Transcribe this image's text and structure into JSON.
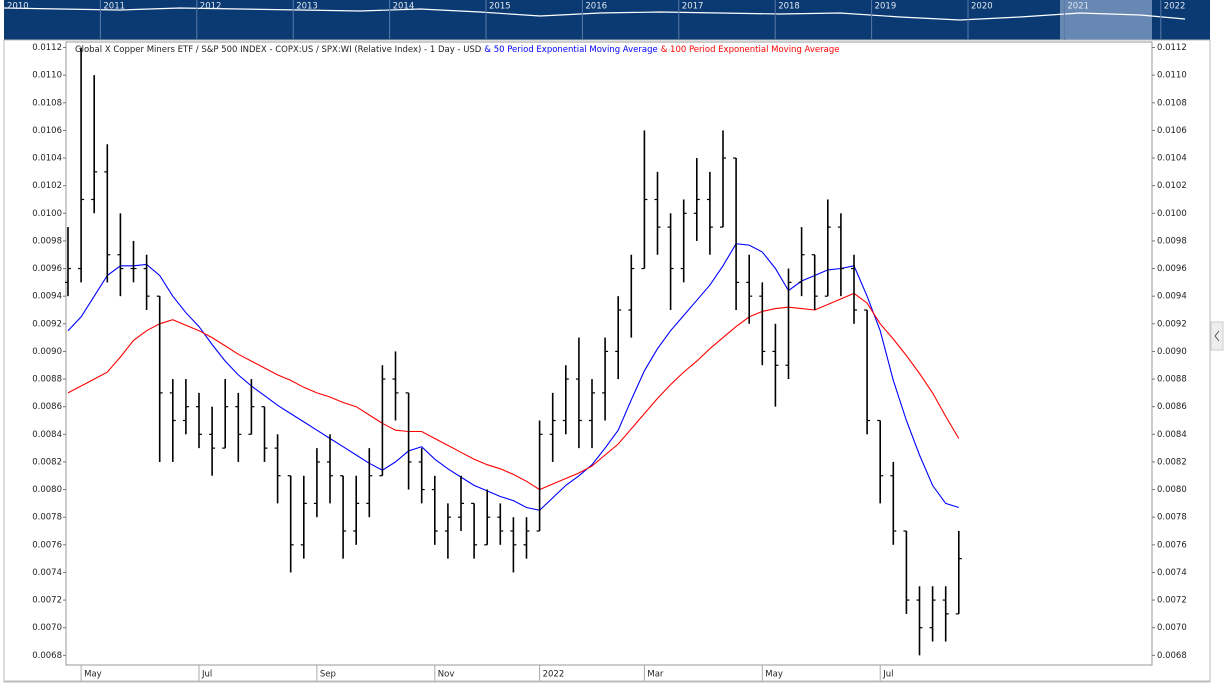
{
  "chart_data": {
    "type": "ohlc",
    "title": "Global X Copper Miners ETF / S&P 500 INDEX - COPX:US / SPX:WI (Relative Index) - 1 Day - USD",
    "categories": [
      null,
      "May",
      null,
      null,
      null,
      null,
      null,
      null,
      null,
      null,
      "Jul",
      null,
      null,
      null,
      null,
      null,
      null,
      null,
      null,
      "Sep",
      null,
      null,
      null,
      null,
      null,
      null,
      null,
      null,
      "Nov",
      null,
      null,
      null,
      null,
      null,
      null,
      null,
      "2022",
      null,
      null,
      null,
      null,
      null,
      null,
      null,
      "Mar",
      null,
      null,
      null,
      null,
      null,
      null,
      null,
      null,
      "May",
      null,
      null,
      null,
      null,
      null,
      null,
      null,
      null,
      "Jul",
      null,
      null,
      null,
      null,
      null,
      null
    ],
    "open": [
      0.0095,
      0.0096,
      0.0101,
      0.0103,
      0.0097,
      0.0096,
      0.0096,
      0.0094,
      0.0087,
      0.0085,
      0.0086,
      0.0084,
      0.0083,
      0.0086,
      0.0084,
      0.0086,
      0.0083,
      0.0081,
      0.0076,
      0.0079,
      0.0082,
      0.0081,
      0.0077,
      0.0079,
      0.0081,
      0.0088,
      0.0087,
      0.0082,
      0.008,
      0.0077,
      0.0078,
      0.0079,
      0.0076,
      0.0078,
      0.0077,
      0.0076,
      0.0077,
      0.0084,
      0.0085,
      0.0088,
      0.0085,
      0.0087,
      0.009,
      0.0093,
      0.0096,
      0.0101,
      0.0099,
      0.0096,
      0.01,
      0.0101,
      0.0099,
      0.0104,
      0.0095,
      0.0094,
      0.009,
      0.0089,
      0.0095,
      0.0097,
      0.0094,
      0.0099,
      0.0096,
      0.0093,
      0.0085,
      0.0081,
      0.0077,
      0.0072,
      0.007,
      0.0072,
      0.0071
    ],
    "high": [
      0.0099,
      0.0112,
      0.011,
      0.0105,
      0.01,
      0.0098,
      0.0097,
      0.0094,
      0.0088,
      0.0088,
      0.0087,
      0.0086,
      0.0088,
      0.0087,
      0.0088,
      0.0086,
      0.0084,
      0.0081,
      0.0081,
      0.0083,
      0.0084,
      0.0081,
      0.0081,
      0.0083,
      0.0089,
      0.009,
      0.0087,
      0.0083,
      0.0081,
      0.0079,
      0.0081,
      0.0079,
      0.008,
      0.0079,
      0.0078,
      0.0078,
      0.0085,
      0.0087,
      0.0089,
      0.0091,
      0.0088,
      0.0091,
      0.0094,
      0.0097,
      0.0106,
      0.0103,
      0.01,
      0.0101,
      0.0104,
      0.0103,
      0.0106,
      0.0104,
      0.0097,
      0.0095,
      0.0092,
      0.0096,
      0.0099,
      0.0097,
      0.0101,
      0.01,
      0.0097,
      0.0093,
      0.0085,
      0.0082,
      0.0077,
      0.0073,
      0.0073,
      0.0073,
      0.0077
    ],
    "low": [
      0.0094,
      0.0095,
      0.01,
      0.0095,
      0.0094,
      0.0095,
      0.0093,
      0.0082,
      0.0082,
      0.0084,
      0.0083,
      0.0081,
      0.0083,
      0.0082,
      0.0084,
      0.0082,
      0.0079,
      0.0074,
      0.0075,
      0.0078,
      0.0079,
      0.0075,
      0.0076,
      0.0078,
      0.0081,
      0.0085,
      0.008,
      0.0079,
      0.0076,
      0.0075,
      0.0077,
      0.0075,
      0.0076,
      0.0076,
      0.0074,
      0.0075,
      0.0077,
      0.0082,
      0.0084,
      0.0083,
      0.0083,
      0.0085,
      0.0088,
      0.0091,
      0.0096,
      0.0097,
      0.0093,
      0.0095,
      0.0098,
      0.0097,
      0.0099,
      0.0093,
      0.0092,
      0.0089,
      0.0086,
      0.0088,
      0.0094,
      0.0093,
      0.0094,
      0.0094,
      0.0092,
      0.0084,
      0.0079,
      0.0076,
      0.0071,
      0.0068,
      0.0069,
      0.0069,
      0.0071
    ],
    "close": [
      0.0096,
      0.0101,
      0.0103,
      0.0097,
      0.0096,
      0.0096,
      0.0094,
      0.0087,
      0.0085,
      0.0086,
      0.0084,
      0.0083,
      0.0086,
      0.0084,
      0.0086,
      0.0083,
      0.0081,
      0.0076,
      0.0079,
      0.0082,
      0.0081,
      0.0077,
      0.0079,
      0.0081,
      0.0088,
      0.0087,
      0.0082,
      0.008,
      0.0077,
      0.0078,
      0.0079,
      0.0076,
      0.0078,
      0.0077,
      0.0076,
      0.0077,
      0.0084,
      0.0085,
      0.0088,
      0.0085,
      0.0087,
      0.009,
      0.0093,
      0.0096,
      0.0101,
      0.0099,
      0.0096,
      0.01,
      0.0101,
      0.0099,
      0.0104,
      0.0095,
      0.0094,
      0.009,
      0.0089,
      0.0095,
      0.0097,
      0.0094,
      0.0099,
      0.0096,
      0.0093,
      0.0085,
      0.0081,
      0.0077,
      0.0072,
      0.007,
      0.0072,
      0.0071,
      0.0075
    ],
    "bar_color": "#000000",
    "series": [
      {
        "name": "& 50 Period Exponential Moving Average",
        "color": "#0000ff",
        "values": [
          0.00915,
          0.00925,
          0.0094,
          0.00955,
          0.00962,
          0.00962,
          0.00963,
          0.00955,
          0.0094,
          0.00928,
          0.00918,
          0.00905,
          0.00893,
          0.00883,
          0.00875,
          0.00868,
          0.00861,
          0.00855,
          0.00849,
          0.00843,
          0.00837,
          0.00831,
          0.00825,
          0.00819,
          0.00814,
          0.0082,
          0.00828,
          0.00831,
          0.00822,
          0.00815,
          0.00809,
          0.00803,
          0.00799,
          0.00795,
          0.00792,
          0.00787,
          0.00785,
          0.00794,
          0.00803,
          0.0081,
          0.00818,
          0.0083,
          0.00843,
          0.00865,
          0.00886,
          0.00902,
          0.00915,
          0.00926,
          0.00937,
          0.00948,
          0.00962,
          0.00978,
          0.00977,
          0.00972,
          0.0096,
          0.00944,
          0.00951,
          0.00955,
          0.00959,
          0.0096,
          0.00962,
          0.0094,
          0.00915,
          0.00879,
          0.0085,
          0.00825,
          0.00803,
          0.0079,
          0.00787
        ]
      },
      {
        "name": "& 100 Period Exponential Moving Average",
        "color": "#ff0000",
        "values": [
          0.0087,
          0.00875,
          0.0088,
          0.00885,
          0.00896,
          0.00908,
          0.00915,
          0.0092,
          0.00923,
          0.00919,
          0.00915,
          0.0091,
          0.00904,
          0.00898,
          0.00893,
          0.00888,
          0.00883,
          0.00879,
          0.00874,
          0.0087,
          0.00867,
          0.00863,
          0.0086,
          0.00854,
          0.00848,
          0.00843,
          0.00842,
          0.00842,
          0.00837,
          0.00832,
          0.00827,
          0.00822,
          0.00818,
          0.00815,
          0.00811,
          0.00806,
          0.008,
          0.00804,
          0.00808,
          0.00812,
          0.00817,
          0.00825,
          0.00833,
          0.00844,
          0.00855,
          0.00866,
          0.00876,
          0.00885,
          0.00893,
          0.00902,
          0.0091,
          0.00918,
          0.00925,
          0.00929,
          0.00931,
          0.00932,
          0.00931,
          0.0093,
          0.00934,
          0.00938,
          0.00942,
          0.00935,
          0.0092,
          0.00909,
          0.00897,
          0.00884,
          0.0087,
          0.00853,
          0.00837
        ]
      }
    ],
    "ylim": [
      0.00673,
      0.01124
    ],
    "yticks": [
      0.0068,
      {
        "value": 0.007,
        "label": "0.0070"
      },
      0.0072,
      0.0074,
      0.0076,
      0.0078,
      {
        "value": 0.008,
        "label": "0.0080"
      },
      0.0082,
      0.0084,
      0.0086,
      0.0088,
      {
        "value": 0.009,
        "label": "0.0090"
      },
      0.0092,
      0.0094,
      0.0096,
      0.0098,
      {
        "value": 0.01,
        "label": "0.0100"
      },
      0.0102,
      0.0104,
      0.0106,
      0.0108,
      {
        "value": 0.011,
        "label": "0.0110"
      },
      0.0112
    ]
  },
  "navigator": {
    "years": [
      "2010",
      "2011",
      "2012",
      "2013",
      "2014",
      "2015",
      "2016",
      "2017",
      "2018",
      "2019",
      "2020",
      "2021",
      "2022"
    ]
  }
}
